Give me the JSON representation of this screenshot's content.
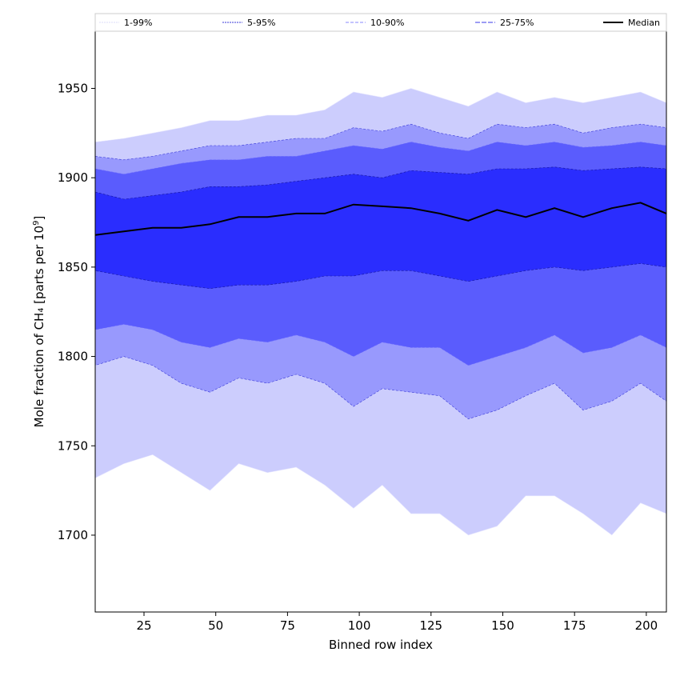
{
  "chart_data": {
    "type": "area",
    "xlabel": "Binned row index",
    "ylabel_prefix": "Mole fraction of CH₄ [parts per 10",
    "ylabel_sup": "9",
    "ylabel_suffix": "]",
    "xlim": [
      8,
      207
    ],
    "ylim": [
      1657,
      1982
    ],
    "xticks": [
      25,
      50,
      75,
      100,
      125,
      150,
      175,
      200
    ],
    "yticks": [
      1700,
      1750,
      1800,
      1850,
      1900,
      1950
    ],
    "grid": false,
    "legend_position": "top",
    "legend": [
      "1-99%",
      "5-95%",
      "10-90%",
      "25-75%",
      "Median"
    ],
    "band_colors": [
      "#cccdfd",
      "#9899fd",
      "#5a5cfd",
      "#2a2dfe"
    ],
    "median_color": "#000000",
    "x": [
      8,
      18,
      28,
      38,
      48,
      58,
      68,
      78,
      88,
      98,
      108,
      118,
      128,
      138,
      148,
      158,
      168,
      178,
      188,
      198,
      207
    ],
    "series": [
      {
        "name": "1-99%",
        "lower": [
          1732,
          1740,
          1745,
          1735,
          1725,
          1740,
          1735,
          1738,
          1728,
          1715,
          1728,
          1712,
          1712,
          1700,
          1705,
          1722,
          1722,
          1712,
          1700,
          1718,
          1712
        ],
        "upper": [
          1920,
          1922,
          1925,
          1928,
          1932,
          1932,
          1935,
          1935,
          1938,
          1948,
          1945,
          1950,
          1945,
          1940,
          1948,
          1942,
          1945,
          1942,
          1945,
          1948,
          1942
        ]
      },
      {
        "name": "5-95%",
        "lower": [
          1795,
          1800,
          1795,
          1785,
          1780,
          1788,
          1785,
          1790,
          1785,
          1772,
          1782,
          1780,
          1778,
          1765,
          1770,
          1778,
          1785,
          1770,
          1775,
          1785,
          1775
        ],
        "upper": [
          1912,
          1910,
          1912,
          1915,
          1918,
          1918,
          1920,
          1922,
          1922,
          1928,
          1926,
          1930,
          1925,
          1922,
          1930,
          1928,
          1930,
          1925,
          1928,
          1930,
          1928
        ]
      },
      {
        "name": "10-90%",
        "lower": [
          1815,
          1818,
          1815,
          1808,
          1805,
          1810,
          1808,
          1812,
          1808,
          1800,
          1808,
          1805,
          1805,
          1795,
          1800,
          1805,
          1812,
          1802,
          1805,
          1812,
          1805
        ],
        "upper": [
          1905,
          1902,
          1905,
          1908,
          1910,
          1910,
          1912,
          1912,
          1915,
          1918,
          1916,
          1920,
          1917,
          1915,
          1920,
          1918,
          1920,
          1917,
          1918,
          1920,
          1918
        ]
      },
      {
        "name": "25-75%",
        "lower": [
          1848,
          1845,
          1842,
          1840,
          1838,
          1840,
          1840,
          1842,
          1845,
          1845,
          1848,
          1848,
          1845,
          1842,
          1845,
          1848,
          1850,
          1848,
          1850,
          1852,
          1850
        ],
        "upper": [
          1892,
          1888,
          1890,
          1892,
          1895,
          1895,
          1896,
          1898,
          1900,
          1902,
          1900,
          1904,
          1903,
          1902,
          1905,
          1905,
          1906,
          1904,
          1905,
          1906,
          1905
        ]
      },
      {
        "name": "Median",
        "values": [
          1868,
          1870,
          1872,
          1872,
          1874,
          1878,
          1878,
          1880,
          1880,
          1885,
          1884,
          1883,
          1880,
          1876,
          1882,
          1878,
          1883,
          1878,
          1883,
          1886,
          1880
        ]
      }
    ]
  }
}
